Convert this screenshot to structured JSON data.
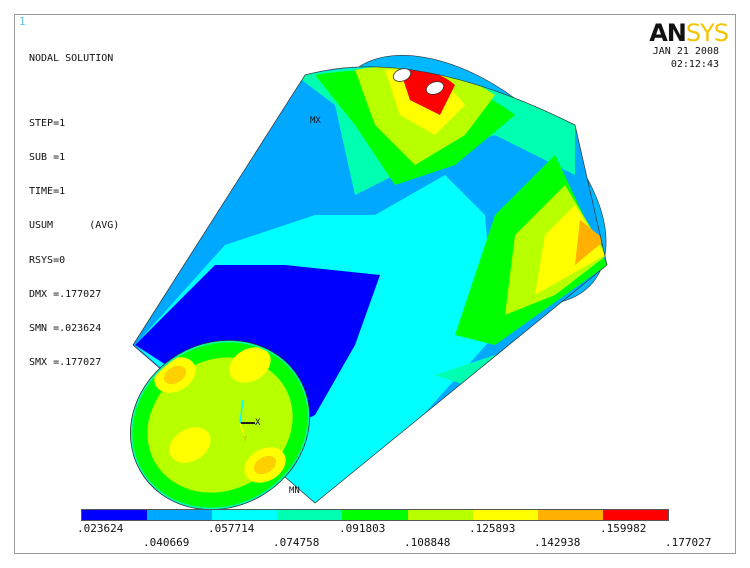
{
  "window_number": "1",
  "info": {
    "title": "NODAL SOLUTION",
    "lines": [
      "STEP=1",
      "SUB =1",
      "TIME=1",
      "USUM      (AVG)",
      "RSYS=0",
      "DMX =.177027",
      "SMN =.023624",
      "SMX =.177027"
    ]
  },
  "logo": {
    "part1": "AN",
    "part2": "SYS"
  },
  "date": "JAN 21 2008",
  "time": "02:12:43",
  "labels": {
    "mx": "MX",
    "mn": "MN",
    "axis_x": "X",
    "axis_y": "Y"
  },
  "legend": {
    "colors": [
      "#0000ff",
      "#00a8ff",
      "#00ffff",
      "#00ffb0",
      "#00ff00",
      "#b8ff00",
      "#ffff00",
      "#ffb000",
      "#ff0000"
    ],
    "top_values": [
      ".023624",
      ".057714",
      ".091803",
      ".125893",
      ".159982"
    ],
    "bottom_values": [
      ".040669",
      ".074758",
      ".108848",
      ".142938",
      ".177027"
    ]
  }
}
